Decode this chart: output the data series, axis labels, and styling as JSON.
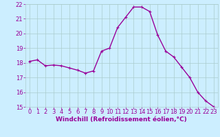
{
  "x": [
    0,
    1,
    2,
    3,
    4,
    5,
    6,
    7,
    8,
    9,
    10,
    11,
    12,
    13,
    14,
    15,
    16,
    17,
    18,
    19,
    20,
    21,
    22,
    23
  ],
  "y": [
    18.1,
    18.2,
    17.8,
    17.85,
    17.8,
    17.65,
    17.5,
    17.3,
    17.45,
    18.8,
    19.0,
    20.4,
    21.1,
    21.8,
    21.8,
    21.5,
    19.9,
    18.8,
    18.4,
    17.7,
    17.0,
    16.0,
    15.4,
    15.0
  ],
  "line_color": "#990099",
  "marker": "+",
  "marker_size": 3,
  "bg_color": "#cceeff",
  "grid_color": "#aacccc",
  "xlabel": "Windchill (Refroidissement éolien,°C)",
  "xlabel_color": "#990099",
  "xlabel_fontsize": 6.5,
  "tick_color": "#990099",
  "tick_fontsize": 6,
  "ylim": [
    15,
    22
  ],
  "xlim": [
    -0.5,
    23.5
  ],
  "yticks": [
    15,
    16,
    17,
    18,
    19,
    20,
    21,
    22
  ],
  "xticks": [
    0,
    1,
    2,
    3,
    4,
    5,
    6,
    7,
    8,
    9,
    10,
    11,
    12,
    13,
    14,
    15,
    16,
    17,
    18,
    19,
    20,
    21,
    22,
    23
  ],
  "line_width": 1.0,
  "marker_edge_width": 0.8
}
